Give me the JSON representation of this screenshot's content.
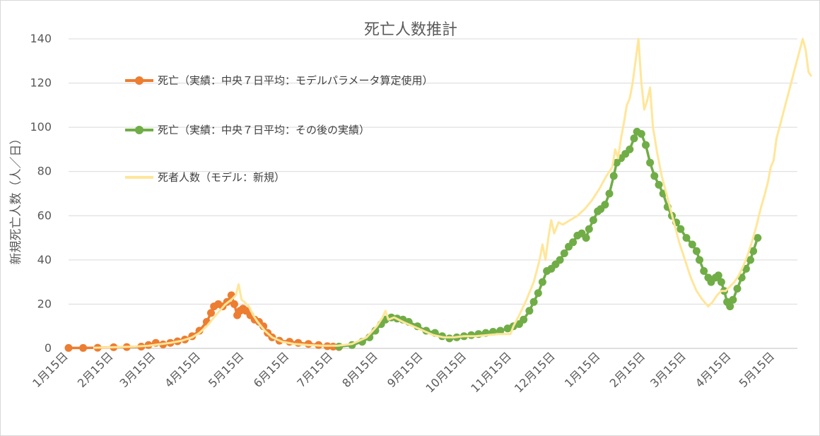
{
  "chart_data": {
    "type": "line",
    "title": "死亡人数推計",
    "ylabel": "新規死亡人数（人／日）",
    "xlabel": "",
    "ylim": [
      0,
      140
    ],
    "yticks": [
      0,
      20,
      40,
      60,
      80,
      100,
      120,
      140
    ],
    "x_tick_labels": [
      "1月15日",
      "2月15日",
      "3月15日",
      "4月15日",
      "5月15日",
      "6月15日",
      "7月15日",
      "8月15日",
      "9月15日",
      "10月15日",
      "11月15日",
      "12月15日",
      "1月15日",
      "2月15日",
      "3月15日",
      "4月15日",
      "5月15日"
    ],
    "x_tick_days": [
      0,
      31,
      60,
      91,
      121,
      152,
      182,
      213,
      244,
      274,
      305,
      335,
      366,
      397,
      425,
      456,
      486
    ],
    "x_range_days": [
      0,
      495
    ],
    "grid": true,
    "legend_position": "upper-left",
    "series": [
      {
        "name": "死亡（実績：中央７日平均：モデルパラメータ算定使用）",
        "color": "#ED7D31",
        "marker": "circle",
        "points": [
          [
            0,
            0.2
          ],
          [
            10,
            0.2
          ],
          [
            20,
            0.3
          ],
          [
            31,
            0.5
          ],
          [
            40,
            0.6
          ],
          [
            50,
            0.8
          ],
          [
            55,
            1.5
          ],
          [
            60,
            2.5
          ],
          [
            65,
            1.8
          ],
          [
            70,
            2.5
          ],
          [
            75,
            3.2
          ],
          [
            80,
            4
          ],
          [
            85,
            5.5
          ],
          [
            90,
            8
          ],
          [
            95,
            12
          ],
          [
            98,
            16
          ],
          [
            100,
            19
          ],
          [
            103,
            20
          ],
          [
            106,
            19
          ],
          [
            109,
            21
          ],
          [
            112,
            24
          ],
          [
            114,
            20
          ],
          [
            116,
            15
          ],
          [
            118,
            17
          ],
          [
            120,
            18
          ],
          [
            122,
            17
          ],
          [
            125,
            15
          ],
          [
            128,
            13
          ],
          [
            131,
            12
          ],
          [
            134,
            10
          ],
          [
            137,
            7
          ],
          [
            140,
            5
          ],
          [
            145,
            3.5
          ],
          [
            152,
            3
          ],
          [
            158,
            2.5
          ],
          [
            165,
            2
          ],
          [
            172,
            1.5
          ],
          [
            178,
            1
          ],
          [
            182,
            0.8
          ],
          [
            186,
            0.6
          ]
        ]
      },
      {
        "name": "死亡（実績：中央７日平均：その後の実績）",
        "color": "#70AD47",
        "marker": "circle",
        "points": [
          [
            186,
            0.8
          ],
          [
            195,
            1.5
          ],
          [
            202,
            3
          ],
          [
            207,
            5
          ],
          [
            211,
            8
          ],
          [
            215,
            11
          ],
          [
            218,
            13
          ],
          [
            222,
            14
          ],
          [
            226,
            13.5
          ],
          [
            230,
            13
          ],
          [
            234,
            12
          ],
          [
            240,
            10
          ],
          [
            246,
            8
          ],
          [
            252,
            7
          ],
          [
            257,
            5.5
          ],
          [
            262,
            4.5
          ],
          [
            267,
            5
          ],
          [
            272,
            5.5
          ],
          [
            277,
            6
          ],
          [
            282,
            6.5
          ],
          [
            287,
            7
          ],
          [
            292,
            7.5
          ],
          [
            297,
            8
          ],
          [
            302,
            9
          ],
          [
            306,
            10
          ],
          [
            310,
            11
          ],
          [
            313,
            13
          ],
          [
            317,
            17
          ],
          [
            320,
            21
          ],
          [
            323,
            25
          ],
          [
            326,
            30
          ],
          [
            329,
            35
          ],
          [
            332,
            36
          ],
          [
            335,
            38
          ],
          [
            338,
            40
          ],
          [
            341,
            43
          ],
          [
            344,
            46
          ],
          [
            347,
            48
          ],
          [
            350,
            51
          ],
          [
            353,
            52
          ],
          [
            356,
            50
          ],
          [
            358,
            54
          ],
          [
            361,
            58
          ],
          [
            364,
            62
          ],
          [
            366,
            63
          ],
          [
            369,
            65
          ],
          [
            372,
            70
          ],
          [
            375,
            78
          ],
          [
            377,
            84
          ],
          [
            380,
            86
          ],
          [
            383,
            88
          ],
          [
            386,
            90
          ],
          [
            389,
            95
          ],
          [
            391,
            98
          ],
          [
            394,
            97
          ],
          [
            397,
            92
          ],
          [
            400,
            84
          ],
          [
            403,
            78
          ],
          [
            406,
            74
          ],
          [
            409,
            70
          ],
          [
            412,
            64
          ],
          [
            415,
            60
          ],
          [
            418,
            57
          ],
          [
            421,
            54
          ],
          [
            425,
            50
          ],
          [
            429,
            47
          ],
          [
            432,
            44
          ],
          [
            434,
            40
          ],
          [
            437,
            35
          ],
          [
            440,
            32
          ],
          [
            442,
            30
          ],
          [
            445,
            32
          ],
          [
            447,
            33
          ],
          [
            449,
            30
          ],
          [
            451,
            26
          ],
          [
            453,
            21
          ],
          [
            455,
            19
          ],
          [
            457,
            22
          ],
          [
            460,
            27
          ],
          [
            463,
            32
          ],
          [
            466,
            36
          ],
          [
            469,
            40
          ],
          [
            471,
            44
          ],
          [
            474,
            50
          ]
        ]
      },
      {
        "name": "死者人数（モデル：新規）",
        "color": "#FFE699",
        "marker": "none",
        "points": [
          [
            17,
            0.3
          ],
          [
            31,
            0.5
          ],
          [
            45,
            0.8
          ],
          [
            55,
            1.2
          ],
          [
            62,
            1.8
          ],
          [
            70,
            2.5
          ],
          [
            78,
            3.5
          ],
          [
            85,
            5
          ],
          [
            90,
            7
          ],
          [
            95,
            10
          ],
          [
            100,
            14
          ],
          [
            104,
            17
          ],
          [
            108,
            20
          ],
          [
            112,
            22
          ],
          [
            115,
            24
          ],
          [
            117,
            29
          ],
          [
            119,
            22
          ],
          [
            121,
            21
          ],
          [
            124,
            19
          ],
          [
            127,
            15
          ],
          [
            130,
            12
          ],
          [
            135,
            8
          ],
          [
            140,
            5
          ],
          [
            147,
            3
          ],
          [
            155,
            2
          ],
          [
            165,
            1.5
          ],
          [
            175,
            1.2
          ],
          [
            185,
            1.2
          ],
          [
            195,
            2
          ],
          [
            205,
            5
          ],
          [
            212,
            10
          ],
          [
            216,
            14
          ],
          [
            218,
            17
          ],
          [
            220,
            13
          ],
          [
            224,
            14
          ],
          [
            230,
            12
          ],
          [
            237,
            10
          ],
          [
            244,
            8
          ],
          [
            251,
            6
          ],
          [
            258,
            5
          ],
          [
            265,
            5
          ],
          [
            272,
            5.5
          ],
          [
            280,
            5.5
          ],
          [
            288,
            6
          ],
          [
            296,
            6.5
          ],
          [
            304,
            6.5
          ],
          [
            306,
            10
          ],
          [
            310,
            15
          ],
          [
            315,
            22
          ],
          [
            320,
            30
          ],
          [
            324,
            40
          ],
          [
            326,
            47
          ],
          [
            328,
            40
          ],
          [
            330,
            50
          ],
          [
            332,
            58
          ],
          [
            334,
            52
          ],
          [
            337,
            57
          ],
          [
            340,
            56
          ],
          [
            345,
            58
          ],
          [
            350,
            60
          ],
          [
            355,
            63
          ],
          [
            360,
            67
          ],
          [
            365,
            72
          ],
          [
            370,
            78
          ],
          [
            374,
            82
          ],
          [
            376,
            90
          ],
          [
            378,
            86
          ],
          [
            380,
            95
          ],
          [
            382,
            102
          ],
          [
            384,
            110
          ],
          [
            386,
            113
          ],
          [
            388,
            120
          ],
          [
            390,
            130
          ],
          [
            392,
            140
          ],
          [
            394,
            120
          ],
          [
            396,
            108
          ],
          [
            398,
            112
          ],
          [
            400,
            118
          ],
          [
            402,
            100
          ],
          [
            405,
            88
          ],
          [
            408,
            78
          ],
          [
            412,
            68
          ],
          [
            416,
            58
          ],
          [
            420,
            48
          ],
          [
            424,
            40
          ],
          [
            428,
            32
          ],
          [
            432,
            26
          ],
          [
            436,
            22
          ],
          [
            440,
            19
          ],
          [
            443,
            21
          ],
          [
            446,
            24
          ],
          [
            449,
            26
          ],
          [
            452,
            26
          ],
          [
            455,
            28
          ],
          [
            458,
            30
          ],
          [
            461,
            33
          ],
          [
            464,
            37
          ],
          [
            467,
            42
          ],
          [
            470,
            48
          ],
          [
            473,
            55
          ],
          [
            476,
            63
          ],
          [
            479,
            70
          ],
          [
            481,
            75
          ],
          [
            483,
            82
          ],
          [
            485,
            85
          ],
          [
            487,
            95
          ],
          [
            489,
            100
          ],
          [
            491,
            105
          ],
          [
            493,
            110
          ],
          [
            495,
            115
          ],
          [
            497,
            120
          ],
          [
            499,
            125
          ],
          [
            501,
            130
          ],
          [
            503,
            135
          ],
          [
            505,
            140
          ],
          [
            507,
            135
          ],
          [
            509,
            125
          ],
          [
            511,
            123
          ]
        ]
      }
    ]
  }
}
